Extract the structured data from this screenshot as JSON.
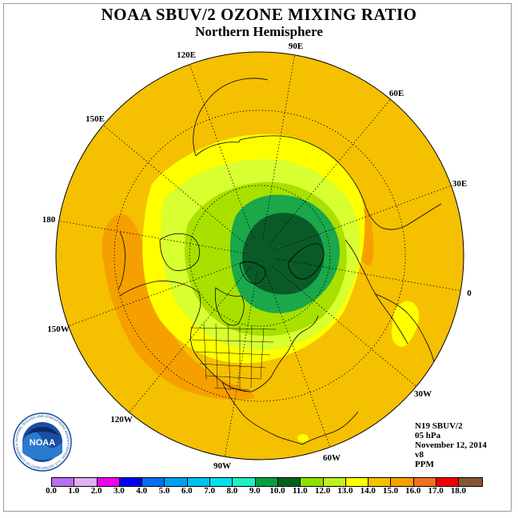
{
  "header": {
    "title": "NOAA SBUV/2 OZONE MIXING RATIO",
    "subtitle": "Northern Hemisphere"
  },
  "map": {
    "longitude_labels": [
      {
        "id": "lon-90e",
        "text": "90E"
      },
      {
        "id": "lon-60e",
        "text": "60E"
      },
      {
        "id": "lon-30e",
        "text": "30E"
      },
      {
        "id": "lon-0",
        "text": "0"
      },
      {
        "id": "lon-30w",
        "text": "30W"
      },
      {
        "id": "lon-60w",
        "text": "60W"
      },
      {
        "id": "lon-90w",
        "text": "90W"
      },
      {
        "id": "lon-120w",
        "text": "120W"
      },
      {
        "id": "lon-150w",
        "text": "150W"
      },
      {
        "id": "lon-180",
        "text": "180"
      },
      {
        "id": "lon-150e",
        "text": "150E"
      },
      {
        "id": "lon-120e",
        "text": "120E"
      }
    ],
    "colors": {
      "background_field": "#f5c000",
      "orange_band": "#f5a000",
      "light_yellow": "#ffff00",
      "yellow_green": "#d8ff30",
      "light_green": "#a8e000",
      "mid_green": "#1aa84a",
      "dark_green": "#0a5a28"
    }
  },
  "info": {
    "satellite": "N19 SBUV/2",
    "level": "05 hPa",
    "date": "November 12, 2014",
    "version": "v8",
    "units": "PPM"
  },
  "logo": {
    "text": "NOAA",
    "ring_text": "NATIONAL OCEANIC AND ATMOSPHERIC ADMINISTRATION · U.S. DEPARTMENT OF COMMERCE"
  },
  "colorbar": {
    "colors": [
      "#b870f0",
      "#e0b0f0",
      "#f000f0",
      "#0000f0",
      "#0070f0",
      "#00a0f0",
      "#00c0f0",
      "#00e0f0",
      "#20f0c0",
      "#00a040",
      "#006020",
      "#90e000",
      "#c0f020",
      "#ffff00",
      "#f5c000",
      "#f5a000",
      "#f07020",
      "#f00000",
      "#885533"
    ],
    "tick_labels": [
      "0.0",
      "1.0",
      "2.0",
      "3.0",
      "4.0",
      "5.0",
      "6.0",
      "7.0",
      "8.0",
      "9.0",
      "10.0",
      "11.0",
      "12.0",
      "13.0",
      "14.0",
      "15.0",
      "16.0",
      "17.0",
      "18.0"
    ]
  }
}
